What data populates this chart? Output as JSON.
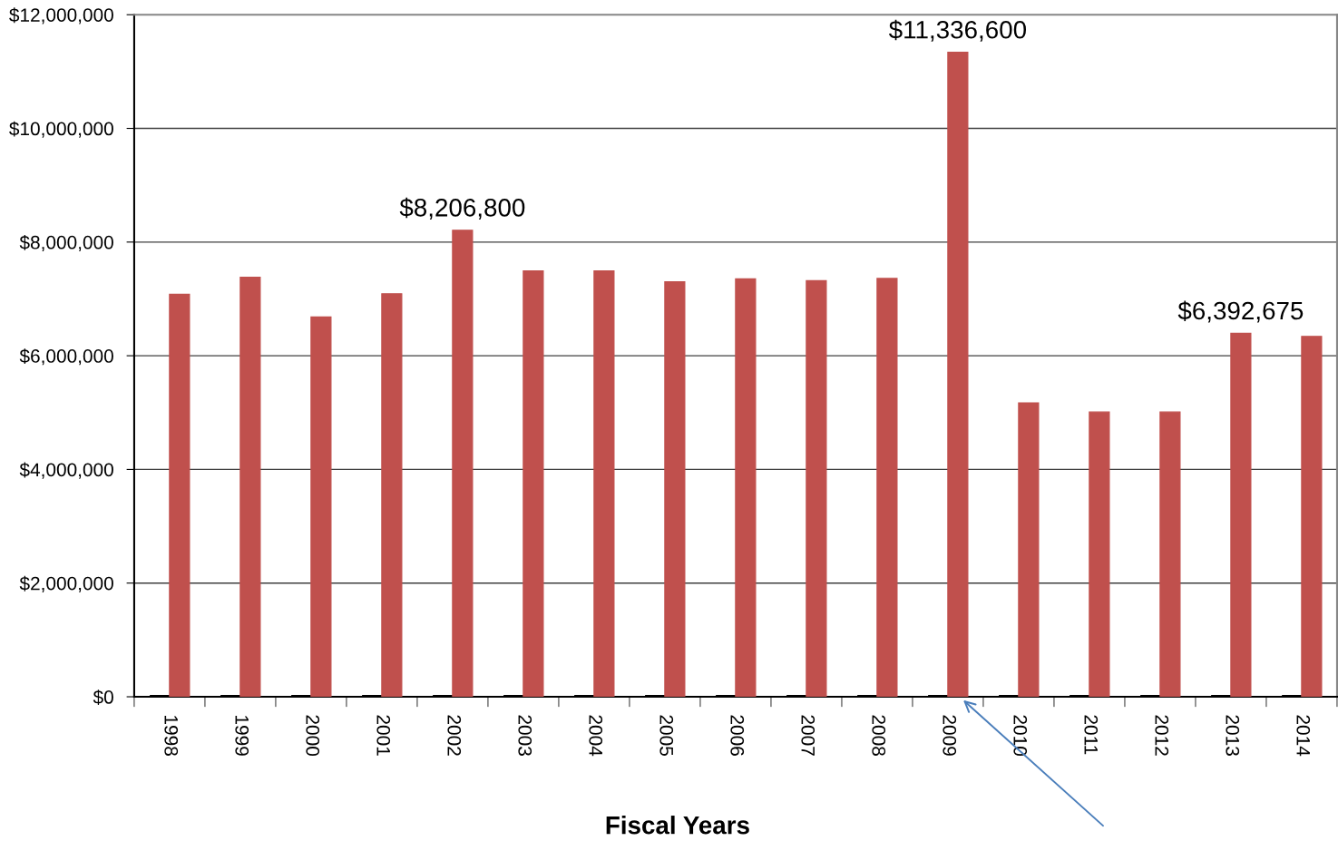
{
  "chart_data": {
    "type": "bar",
    "xlabel": "Fiscal Years",
    "categories": [
      "1998",
      "1999",
      "2000",
      "2001",
      "2002",
      "2003",
      "2004",
      "2005",
      "2006",
      "2007",
      "2008",
      "2009",
      "2010",
      "2011",
      "2012",
      "2013",
      "2014"
    ],
    "series": [
      {
        "color": "#000000",
        "values": [
          0,
          0,
          0,
          0,
          0,
          0,
          0,
          0,
          0,
          0,
          0,
          0,
          0,
          0,
          0,
          0,
          0
        ]
      },
      {
        "color": "#c0504d",
        "values": [
          7080000,
          7380000,
          6680000,
          7090000,
          8206800,
          7490000,
          7490000,
          7300000,
          7350000,
          7320000,
          7360000,
          11336600,
          5170000,
          5010000,
          5010000,
          6392675,
          6340000
        ],
        "value_labels": [
          null,
          null,
          null,
          null,
          "$8,206,800",
          null,
          null,
          null,
          null,
          null,
          null,
          "$11,336,600",
          null,
          null,
          null,
          "$6,392,675",
          null
        ]
      }
    ],
    "ylim": [
      0,
      12000000
    ],
    "yticks": [
      {
        "value": 0,
        "label": "$0"
      },
      {
        "value": 2000000,
        "label": "$2,000,000"
      },
      {
        "value": 4000000,
        "label": "$4,000,000"
      },
      {
        "value": 6000000,
        "label": "$6,000,000"
      },
      {
        "value": 8000000,
        "label": "$8,000,000"
      },
      {
        "value": 10000000,
        "label": "$10,000,000"
      },
      {
        "value": 12000000,
        "label": "$12,000,000"
      }
    ],
    "grid": "y"
  }
}
